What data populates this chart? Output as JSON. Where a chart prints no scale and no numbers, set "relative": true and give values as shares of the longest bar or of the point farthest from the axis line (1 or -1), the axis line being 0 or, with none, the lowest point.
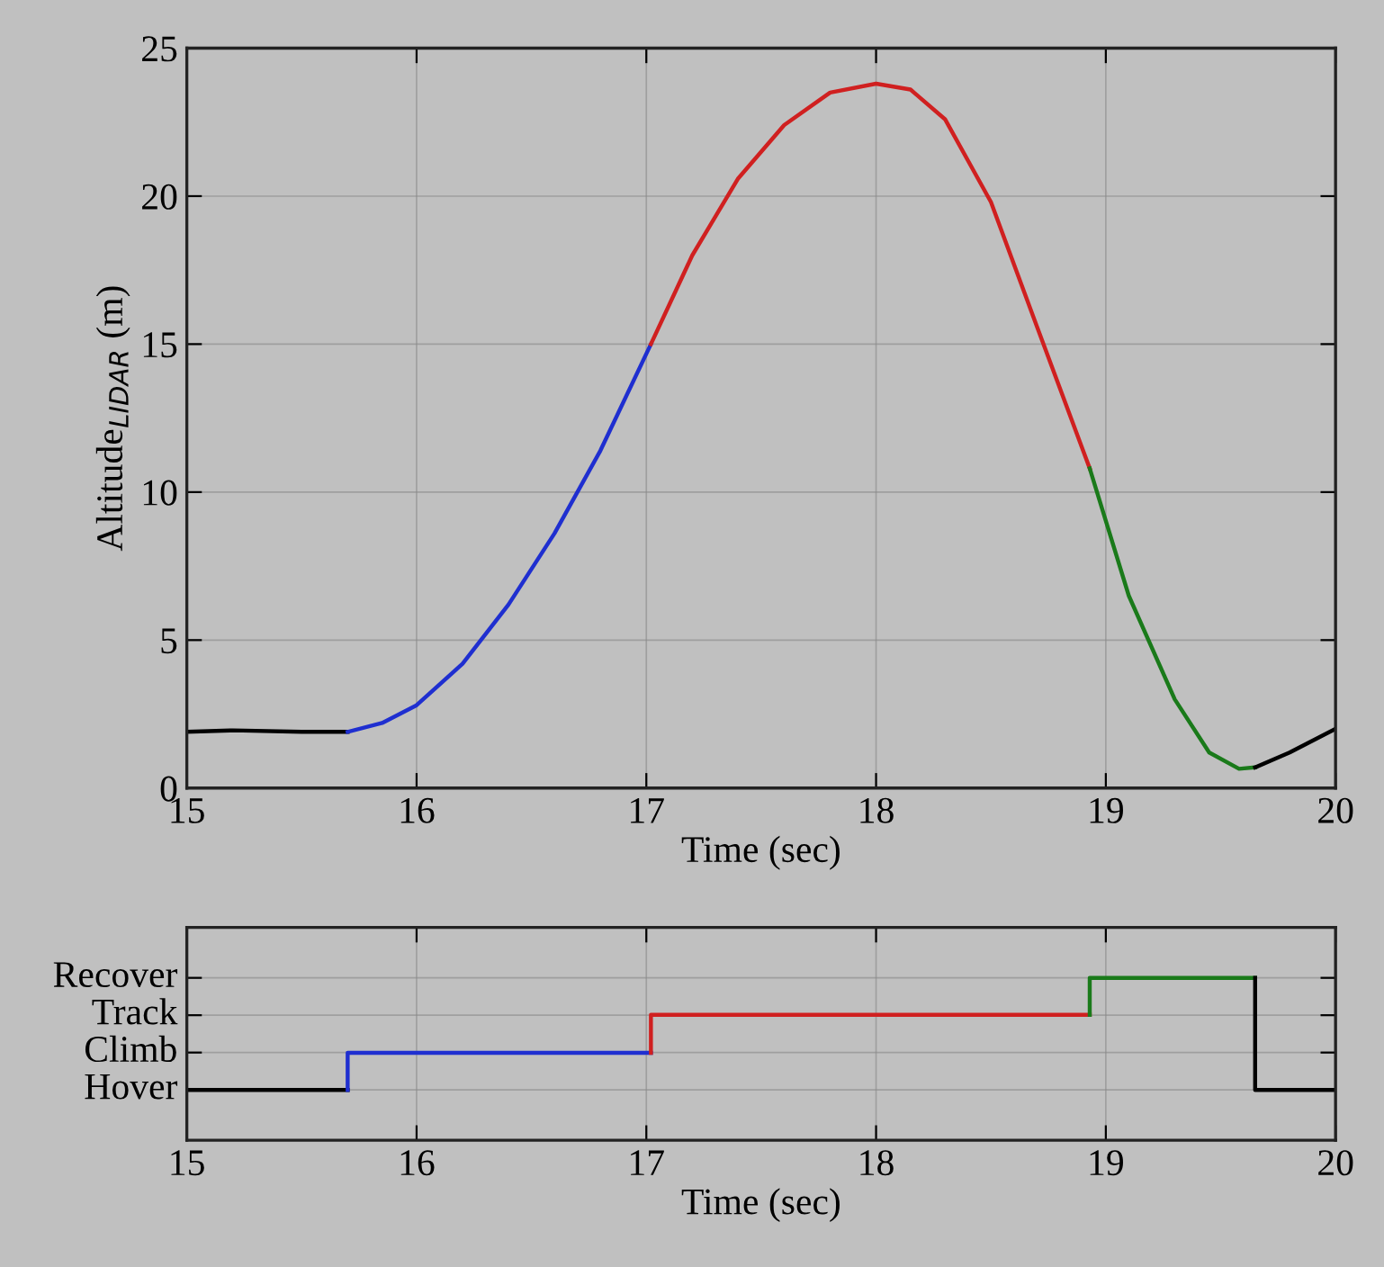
{
  "chart_data": [
    {
      "type": "line",
      "xlabel": "Time (sec)",
      "ylabel": "Altitude$_{LIDAR}$ (m)",
      "xlim": [
        15,
        20
      ],
      "ylim": [
        0,
        25
      ],
      "xticks": [
        15,
        16,
        17,
        18,
        19,
        20
      ],
      "yticks": [
        0,
        5,
        10,
        15,
        20,
        25
      ],
      "grid": true,
      "legend": false,
      "series": [
        {
          "color": "#000000",
          "x": [
            15,
            15.2,
            15.5,
            15.7
          ],
          "values": [
            1.9,
            1.95,
            1.9,
            1.9
          ]
        },
        {
          "color": "#1f2fd0",
          "x": [
            15.7,
            15.85,
            16,
            16.2,
            16.4,
            16.6,
            16.8,
            17.02
          ],
          "values": [
            1.9,
            2.2,
            2.8,
            4.2,
            6.2,
            8.6,
            11.4,
            15
          ]
        },
        {
          "color": "#d02020",
          "x": [
            17.02,
            17.2,
            17.4,
            17.6,
            17.8,
            18,
            18.15,
            18.3,
            18.5,
            18.7,
            18.93
          ],
          "values": [
            15,
            18,
            20.6,
            22.4,
            23.5,
            23.8,
            23.6,
            22.6,
            19.8,
            15.6,
            10.8
          ]
        },
        {
          "color": "#1a7a1a",
          "x": [
            18.93,
            19.1,
            19.3,
            19.45,
            19.58,
            19.65
          ],
          "values": [
            10.8,
            6.5,
            3,
            1.2,
            0.65,
            0.7
          ]
        },
        {
          "color": "#000000",
          "x": [
            19.65,
            19.8,
            20
          ],
          "values": [
            0.7,
            1.2,
            2
          ]
        }
      ]
    },
    {
      "type": "line",
      "relative": true,
      "xlabel": "Time (sec)",
      "xlim": [
        15,
        20
      ],
      "xticks": [
        15,
        16,
        17,
        18,
        19,
        20
      ],
      "annotations": [
        "Hover",
        "Climb",
        "Track",
        "Recover"
      ],
      "grid": true,
      "legend": false,
      "series": [
        {
          "color": "#000000",
          "x": [
            15,
            15.7
          ],
          "values": [
            0,
            0
          ]
        },
        {
          "color": "#1f2fd0",
          "x": [
            15.7,
            15.7,
            17.02
          ],
          "values": [
            0,
            0.33,
            0.33
          ]
        },
        {
          "color": "#d02020",
          "x": [
            17.02,
            17.02,
            18.93
          ],
          "values": [
            0.33,
            0.67,
            0.67
          ]
        },
        {
          "color": "#1a7a1a",
          "x": [
            18.93,
            18.93,
            19.65
          ],
          "values": [
            0.67,
            1,
            1
          ]
        },
        {
          "color": "#000000",
          "x": [
            19.65,
            19.65,
            20
          ],
          "values": [
            1,
            0,
            0
          ]
        }
      ]
    }
  ]
}
